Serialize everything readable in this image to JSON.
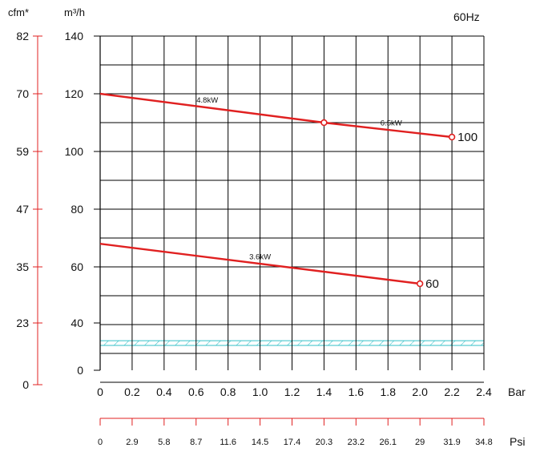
{
  "chart_data": {
    "type": "line",
    "frequency_label": "60Hz",
    "x_axis": {
      "unit": "Bar",
      "ticks": [
        "0",
        "0.2",
        "0.4",
        "0.6",
        "0.8",
        "1.0",
        "1.2",
        "1.4",
        "1.6",
        "1.8",
        "2.0",
        "2.2",
        "2.4"
      ],
      "range": [
        0,
        2.4
      ]
    },
    "psi_axis": {
      "unit": "Psi",
      "ticks": [
        "0",
        "2.9",
        "5.8",
        "8.7",
        "11.6",
        "14.5",
        "17.4",
        "20.3",
        "23.2",
        "26.1",
        "29",
        "31.9",
        "34.8"
      ]
    },
    "y_axis": {
      "unit": "m³/h",
      "ticks": [
        "0",
        "40",
        "60",
        "80",
        "100",
        "120",
        "140"
      ]
    },
    "cfm_axis": {
      "unit": "cfm*",
      "ticks": [
        "0",
        "23",
        "35",
        "47",
        "59",
        "70",
        "82"
      ]
    },
    "series": [
      {
        "name": "100",
        "points": [
          [
            0,
            120
          ],
          [
            1.4,
            110
          ],
          [
            2.2,
            105
          ]
        ],
        "markers": [
          [
            1.4,
            110
          ],
          [
            2.2,
            105
          ]
        ],
        "power_labels": [
          {
            "text": "4.8kW",
            "x": 0.67
          },
          {
            "text": "6.5kW",
            "x": 1.82
          }
        ]
      },
      {
        "name": "60",
        "points": [
          [
            0,
            68
          ],
          [
            2.0,
            54
          ]
        ],
        "markers": [
          [
            2.0,
            54
          ]
        ],
        "power_labels": [
          {
            "text": "3.6kW",
            "x": 1.0
          }
        ]
      }
    ],
    "hatched_band": {
      "y_from": 21,
      "y_to": 25
    },
    "colors": {
      "curve": "#e02020",
      "grid": "#000000",
      "hatch": "#35c0c8",
      "aux_axis": "#e02020"
    }
  }
}
